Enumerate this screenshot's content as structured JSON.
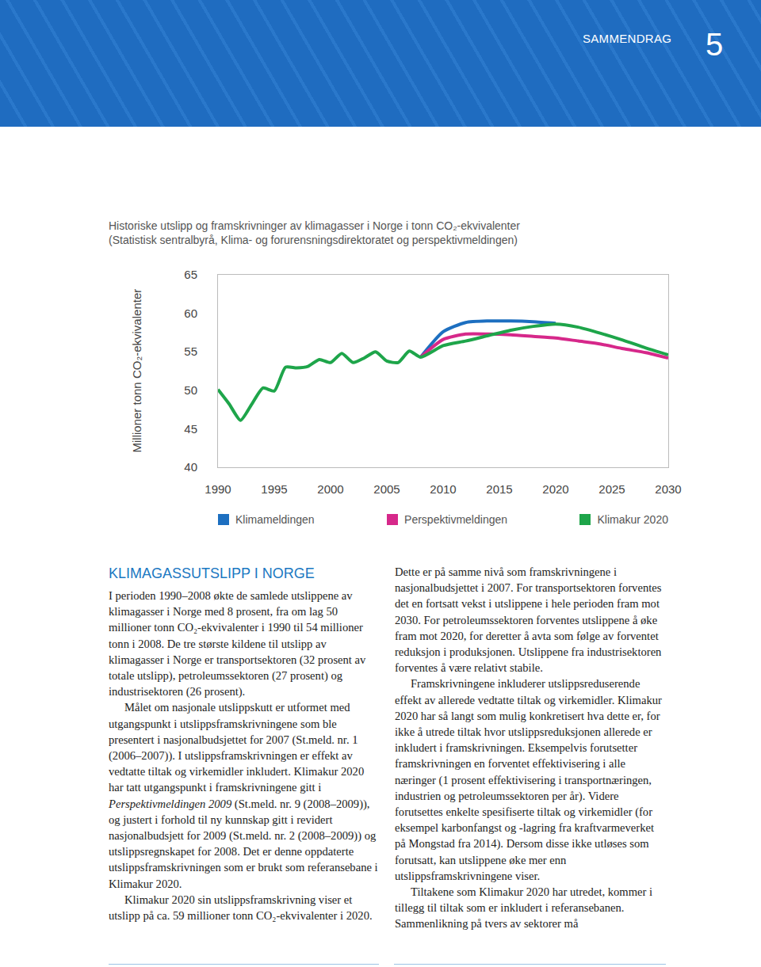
{
  "header": {
    "section": "SAMMENDRAG",
    "page": "5"
  },
  "chart_data": {
    "type": "line",
    "title": "Historiske utslipp og framskrivninger av klimagasser i Norge i tonn CO₂-ekvivalenter",
    "subtitle": "(Statistisk sentralbyrå, Klima- og forurensningsdirektoratet og perspektivmeldingen)",
    "y_label": "Millioner tonn CO₂-ekvivalenter",
    "x": [
      1990,
      1991,
      1992,
      1993,
      1994,
      1995,
      1996,
      1997,
      1998,
      1999,
      2000,
      2001,
      2002,
      2003,
      2004,
      2005,
      2006,
      2007,
      2008,
      2010,
      2012,
      2014,
      2016,
      2018,
      2020,
      2022,
      2024,
      2026,
      2028,
      2030
    ],
    "series": [
      {
        "name": "Klimameldingen",
        "color": "#1d6fc0",
        "values": [
          null,
          null,
          null,
          null,
          null,
          null,
          null,
          null,
          null,
          null,
          null,
          null,
          null,
          null,
          null,
          null,
          null,
          null,
          54.3,
          57.6,
          58.8,
          59.0,
          59.0,
          58.9,
          58.7,
          null,
          null,
          null,
          null,
          null
        ]
      },
      {
        "name": "Perspektivmeldingen",
        "color": "#d6288a",
        "values": [
          null,
          null,
          null,
          null,
          null,
          null,
          null,
          null,
          null,
          null,
          null,
          null,
          null,
          null,
          null,
          null,
          null,
          null,
          54.3,
          56.6,
          57.3,
          57.3,
          57.2,
          57.0,
          56.8,
          56.4,
          56.0,
          55.4,
          54.9,
          54.2
        ]
      },
      {
        "name": "Klimakur 2020",
        "color": "#1ea54a",
        "values": [
          50.1,
          48.2,
          46.1,
          48.2,
          50.3,
          49.9,
          53.0,
          52.9,
          53.1,
          54.0,
          53.6,
          54.8,
          53.6,
          54.2,
          55.0,
          53.8,
          53.6,
          55.1,
          54.3,
          55.8,
          56.4,
          57.1,
          57.8,
          58.3,
          58.6,
          58.2,
          57.4,
          56.5,
          55.5,
          54.6
        ]
      }
    ],
    "xlim": [
      1990,
      2030
    ],
    "xticks": [
      1990,
      1995,
      2000,
      2005,
      2010,
      2015,
      2020,
      2025,
      2030
    ],
    "ylim": [
      40,
      65
    ],
    "yticks": [
      40,
      45,
      50,
      55,
      60,
      65
    ],
    "grid": false,
    "legend": "bottom"
  },
  "article": {
    "heading": "KLIMAGASSUTSLIPP I NORGE",
    "paragraphs": [
      [
        "I perioden 1990–2008 økte de samlede utslippene av klimagasser i Norge med 8 prosent, fra om lag 50 millioner tonn CO₂-ekvivalenter i 1990 til 54 millioner tonn i 2008. De tre største kildene til utslipp av klimagasser i Norge er transportsektoren (32 prosent av totale utslipp), petroleumssektoren (27 prosent) og industrisektoren (26 prosent)."
      ],
      [
        "Målet om nasjonale utslippskutt er utformet med utgangspunkt i utslippsframskrivningene som ble presentert i nasjonalbudsjettet for 2007 (St.meld. nr. 1 (2006–2007)). I utslippsframskrivningen er effekt av vedtatte tiltak og virkemidler inkludert. Klimakur 2020 har tatt utgangspunkt i framskrivningene gitt i ",
        {
          "em": "Perspektivmeldingen 2009"
        },
        " (St.meld. nr. 9 (2008–2009)), og justert i forhold til ny kunnskap gitt i revidert nasjonalbudsjett for 2009 (St.meld. nr. 2 (2008–2009)) og utslippsregnskapet for 2008. Det er denne oppdaterte utslippsframskrivningen som er brukt som referansebane i Klimakur 2020."
      ],
      [
        "Klimakur 2020 sin utslippsframskrivning viser et utslipp på ca. 59 millioner tonn CO₂-ekvivalenter i 2020. Dette er på samme nivå som framskrivningene i nasjonalbudsjettet i 2007. For transportsektoren forventes det en fortsatt vekst i utslippene i hele perioden fram mot 2030. For petroleumssektoren forventes utslippene å øke fram mot 2020, for deretter å avta som følge av forventet reduksjon i produksjonen. Utslippene fra industrisektoren forventes å være relativt stabile."
      ],
      [
        "Framskrivningene inkluderer utslippsreduserende effekt av allerede vedtatte tiltak og virkemidler. Klimakur 2020 har så langt som mulig konkretisert hva dette er, for ikke å utrede tiltak hvor utslippsreduksjonen allerede er inkludert i framskrivningen. Eksempelvis forutsetter framskrivningen en forventet effektivisering i alle næringer (1 prosent effektivisering i transportnæringen, industrien og petroleumssektoren per år). Videre forutsettes enkelte spesifiserte tiltak og virkemidler (for eksempel karbonfangst og -lagring fra kraftvarmeverket på Mongstad fra 2014). Dersom disse ikke utløses som forutsatt, kan utslippene øke mer enn utslippsframskrivningene viser."
      ],
      [
        "Tiltakene som Klimakur 2020 har utredet, kommer i tillegg til tiltak som er inkludert i referansebanen. Sammenlikning på tvers av sektorer må"
      ]
    ]
  }
}
